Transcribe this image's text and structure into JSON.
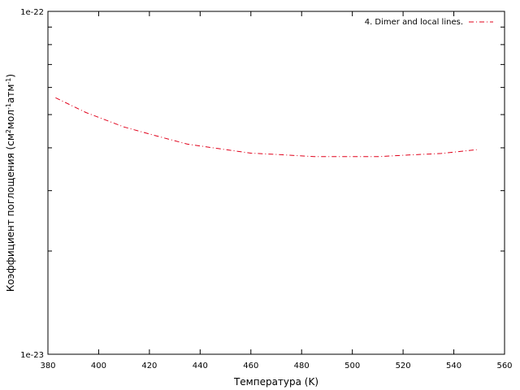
{
  "chart_data": {
    "type": "line",
    "xlabel": "Температура (K)",
    "ylabel": {
      "base": "Коэффициент поглощения (см",
      "sup1": "2",
      "mid1": "мол",
      "sup2": "-1",
      "mid2": "атм",
      "sup3": "-1",
      "end": ")"
    },
    "xlim": [
      380,
      560
    ],
    "ylim": [
      1e-23,
      1e-22
    ],
    "yscale": "log",
    "x_ticks": [
      380,
      400,
      420,
      440,
      460,
      480,
      500,
      520,
      540,
      560
    ],
    "x_tick_labels": [
      "380",
      "400",
      "420",
      "440",
      "460",
      "480",
      "500",
      "520",
      "540",
      "560"
    ],
    "y_ticks": [
      1e-23,
      1e-22
    ],
    "y_tick_labels": [
      "1e-23",
      "1e-22"
    ],
    "y_minor_ticks": [
      2e-23,
      3e-23,
      4e-23,
      5e-23,
      6e-23,
      7e-23,
      8e-23,
      9e-23
    ],
    "grid": false,
    "legend_position": "top-right",
    "series": [
      {
        "name": "4. Dimer and local lines.",
        "color": "#e0001a",
        "line_style": "dash-dot",
        "x": [
          383,
          395,
          410,
          422,
          435,
          447,
          460,
          472,
          485,
          497,
          510,
          522,
          535,
          549
        ],
        "y": [
          5.6e-23,
          5.07e-23,
          4.6e-23,
          4.35e-23,
          4.1e-23,
          3.98e-23,
          3.86e-23,
          3.82e-23,
          3.77e-23,
          3.77e-23,
          3.77e-23,
          3.81e-23,
          3.85e-23,
          3.95e-23
        ]
      }
    ]
  }
}
